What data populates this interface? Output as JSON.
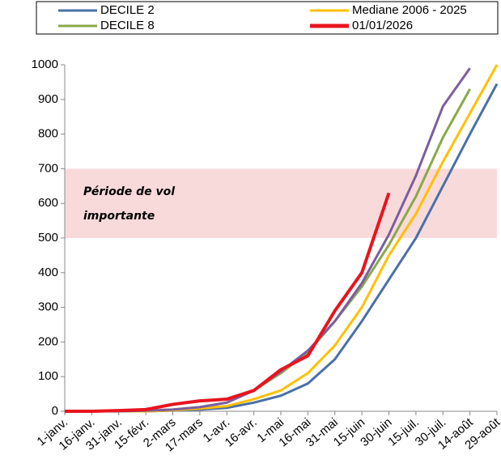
{
  "chart_data": {
    "type": "line",
    "categories": [
      "1-janv.",
      "16-janv.",
      "31-janv.",
      "15-févr.",
      "2-mars",
      "17-mars",
      "1-avr.",
      "16-avr.",
      "1-mai",
      "16-mai",
      "31-mai",
      "15-juin",
      "30-juin",
      "15-juil.",
      "30-juil.",
      "14-août",
      "29-août"
    ],
    "series": [
      {
        "name": "DECILE 2",
        "color": "#4a70a8",
        "values": [
          0,
          0,
          0,
          0,
          2,
          5,
          10,
          25,
          45,
          80,
          150,
          260,
          380,
          500,
          650,
          800,
          945
        ]
      },
      {
        "name": "Mediane 2006 - 2025",
        "color": "#ffc000",
        "values": [
          0,
          0,
          0,
          0,
          3,
          8,
          15,
          35,
          60,
          110,
          190,
          300,
          450,
          570,
          720,
          860,
          1000
        ]
      },
      {
        "name": "DECILE 8",
        "color": "#8aa84a",
        "values": [
          0,
          0,
          0,
          2,
          5,
          12,
          25,
          60,
          110,
          170,
          260,
          360,
          480,
          620,
          790,
          930,
          null
        ]
      },
      {
        "color": "#7b5ea0",
        "values": [
          0,
          0,
          0,
          2,
          5,
          12,
          25,
          60,
          115,
          175,
          260,
          370,
          510,
          680,
          880,
          990,
          null
        ]
      },
      {
        "name": "01/01/2026",
        "color": "#e8141e",
        "values": [
          0,
          0,
          2,
          5,
          20,
          30,
          35,
          60,
          120,
          160,
          290,
          400,
          630,
          null,
          null,
          null,
          null
        ]
      }
    ],
    "ylim": [
      0,
      1000
    ],
    "yticks": [
      0,
      100,
      200,
      300,
      400,
      500,
      600,
      700,
      800,
      900,
      1000
    ],
    "band": {
      "range": [
        500,
        700
      ],
      "color": "#f9dadb",
      "label": [
        "Période de vol",
        "importante"
      ]
    },
    "grid": false
  }
}
